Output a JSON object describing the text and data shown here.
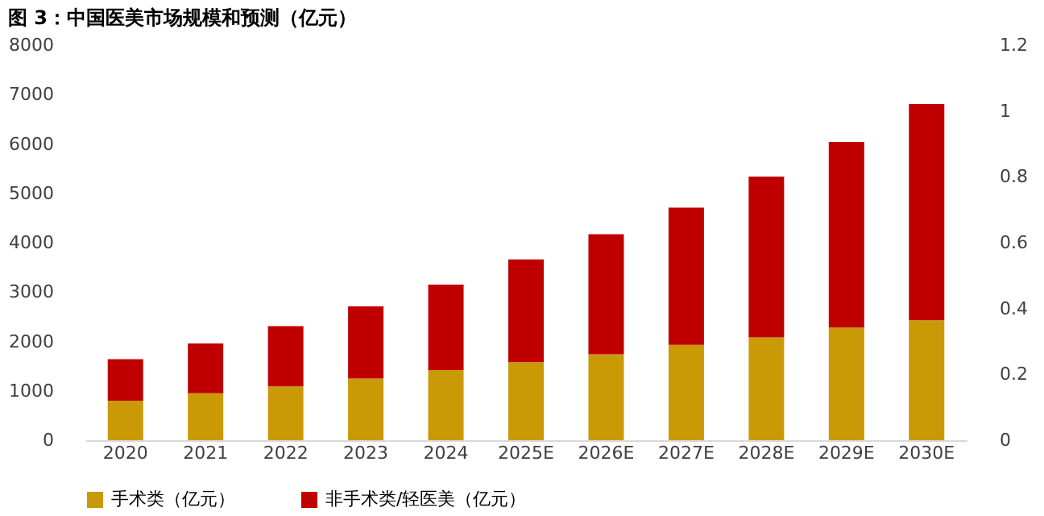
{
  "chart_data": {
    "type": "bar",
    "title": "图 3：中国医美市场规模和预测（亿元）",
    "categories": [
      "2020",
      "2021",
      "2022",
      "2023",
      "2024",
      "2025E",
      "2026E",
      "2027E",
      "2028E",
      "2029E",
      "2030E"
    ],
    "stacked": true,
    "series": [
      {
        "name": "手术类（亿元）",
        "color": "#c99a06",
        "values": [
          800,
          950,
          1090,
          1250,
          1420,
          1580,
          1740,
          1930,
          2080,
          2280,
          2430
        ]
      },
      {
        "name": "非手术类/轻医美（亿元）",
        "color": "#c00000",
        "values": [
          840,
          1010,
          1220,
          1460,
          1730,
          2080,
          2430,
          2780,
          3260,
          3760,
          4380
        ]
      }
    ],
    "ylim": [
      0,
      8000
    ],
    "yticks": [
      0,
      1000,
      2000,
      3000,
      4000,
      5000,
      6000,
      7000,
      8000
    ],
    "y2lim": [
      0,
      1.2
    ],
    "y2ticks": [
      0,
      0.2,
      0.4,
      0.6,
      0.8,
      1,
      1.2
    ],
    "grid": false,
    "legend": "bottom"
  }
}
